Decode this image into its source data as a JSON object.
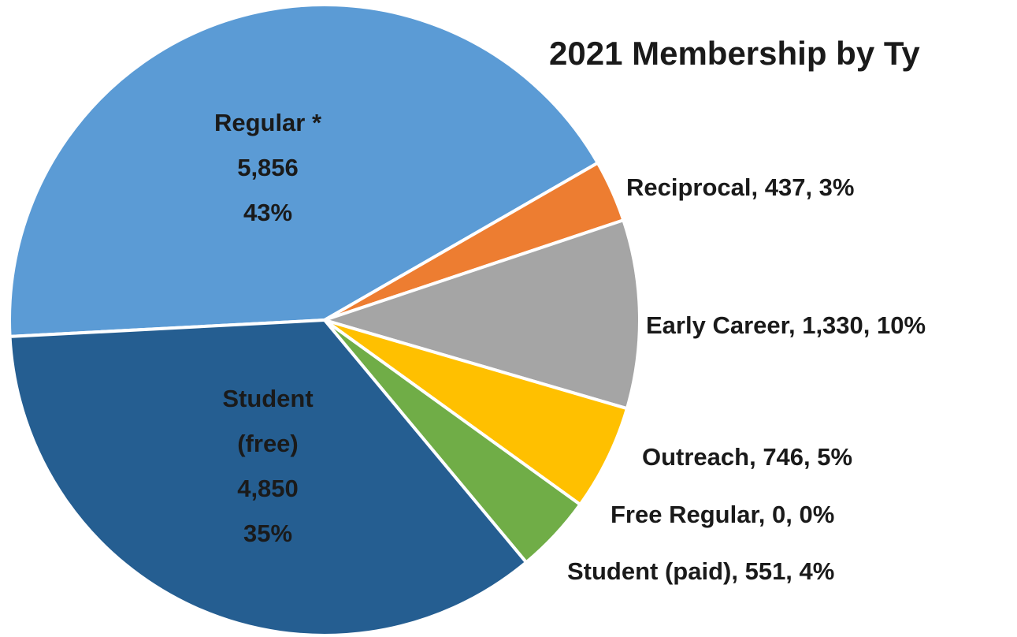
{
  "chart_data": {
    "type": "pie",
    "title": "2021 Membership by Ty",
    "values": [
      5856,
      437,
      1330,
      746,
      0,
      551,
      4850
    ],
    "value_labels": [
      [
        "Regular *",
        "5,856",
        "43%"
      ],
      [
        "Reciprocal, 437, 3%"
      ],
      [
        "Early Career, 1,330, 10%"
      ],
      [
        "Outreach, 746, 5%"
      ],
      [
        "Free Regular, 0, 0%"
      ],
      [
        "Student (paid), 551, 4%"
      ],
      [
        "Student",
        "(free)",
        "4,850",
        "35%"
      ]
    ],
    "colors": [
      "#5b9bd5",
      "#ed7d31",
      "#a5a5a5",
      "#ffc000",
      "#4472c4",
      "#70ad47",
      "#255e91"
    ]
  }
}
